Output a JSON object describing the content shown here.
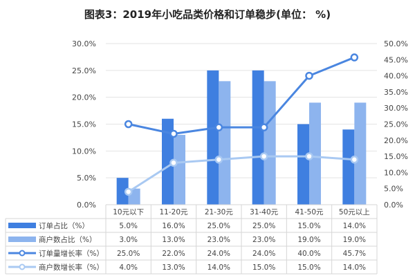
{
  "chart_data": {
    "type": "bar+line",
    "title": "图表3：2019年小吃品类价格和订单稳步(单位： %)",
    "categories": [
      "10元以下",
      "11-20元",
      "21-30元",
      "31-40元",
      "41-50元",
      "50元以上"
    ],
    "left_axis": {
      "ylim": [
        0,
        30
      ],
      "ticks": [
        "0.0%",
        "5.0%",
        "10.0%",
        "15.0%",
        "20.0%",
        "25.0%",
        "30.0%"
      ]
    },
    "right_axis": {
      "ylim": [
        0,
        50
      ],
      "ticks": [
        "0.0%",
        "5.0%",
        "10.0%",
        "15.0%",
        "20.0%",
        "25.0%",
        "30.0%",
        "35.0%",
        "40.0%",
        "45.0%",
        "50.0%"
      ]
    },
    "grid": true,
    "legend": "data-table-bottom",
    "series": [
      {
        "name": "订单占比（%）",
        "type": "bar",
        "axis": "left",
        "color": "#3f7fe0",
        "values": [
          5.0,
          16.0,
          25.0,
          25.0,
          15.0,
          14.0
        ],
        "labels": [
          "5.0%",
          "16.0%",
          "25.0%",
          "25.0%",
          "15.0%",
          "14.0%"
        ]
      },
      {
        "name": "商户数占比（%）",
        "type": "bar",
        "axis": "left",
        "color": "#8db4ee",
        "values": [
          3.0,
          13.0,
          23.0,
          23.0,
          19.0,
          19.0
        ],
        "labels": [
          "3.0%",
          "13.0%",
          "23.0%",
          "23.0%",
          "19.0%",
          "19.0%"
        ]
      },
      {
        "name": "订单量增长率（%）",
        "type": "line",
        "axis": "right",
        "color": "#4a86e0",
        "values": [
          25.0,
          22.0,
          24.0,
          24.0,
          40.0,
          45.7
        ],
        "labels": [
          "25.0%",
          "22.0%",
          "24.0%",
          "24.0%",
          "40.0%",
          "45.7%"
        ]
      },
      {
        "name": "商户数增长率（%）",
        "type": "line",
        "axis": "right",
        "color": "#a9c9f2",
        "values": [
          4.0,
          13.0,
          14.0,
          15.0,
          15.0,
          14.0
        ],
        "labels": [
          "4.0%",
          "13.0%",
          "14.0%",
          "15.0%",
          "15.0%",
          "14.0%"
        ]
      }
    ]
  }
}
